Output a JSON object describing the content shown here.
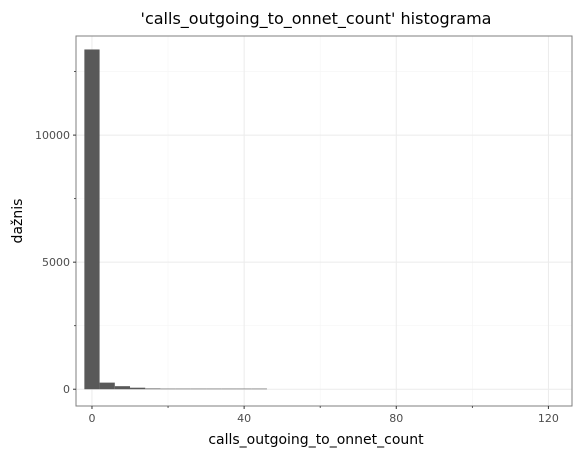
{
  "chart_data": {
    "type": "bar",
    "title": "'calls_outgoing_to_onnet_count' histograma",
    "xlabel": "calls_outgoing_to_onnet_count",
    "ylabel": "dažnis",
    "xlim": [
      -4.2,
      126.2
    ],
    "ylim": [
      -660,
      13900
    ],
    "x_ticks": [
      0,
      40,
      80,
      120
    ],
    "x_tick_labels": [
      "0",
      "40",
      "80",
      "120"
    ],
    "y_ticks": [
      0,
      5000,
      10000
    ],
    "y_tick_labels": [
      "0",
      "5000",
      "10000"
    ],
    "bin_width": 4,
    "bins": [
      {
        "center": 0,
        "count": 13370
      },
      {
        "center": 4,
        "count": 260
      },
      {
        "center": 8,
        "count": 120
      },
      {
        "center": 12,
        "count": 60
      },
      {
        "center": 16,
        "count": 30
      },
      {
        "center": 20,
        "count": 14
      },
      {
        "center": 24,
        "count": 8
      },
      {
        "center": 28,
        "count": 5
      },
      {
        "center": 32,
        "count": 3
      },
      {
        "center": 36,
        "count": 2
      },
      {
        "center": 40,
        "count": 1
      },
      {
        "center": 44,
        "count": 1
      }
    ],
    "grid": true,
    "legend": "none",
    "colors": {
      "bar": "#595959",
      "panel_border": "#7f7f7f",
      "grid_major": "#ebebeb",
      "grid_minor": "#f5f5f5"
    }
  }
}
